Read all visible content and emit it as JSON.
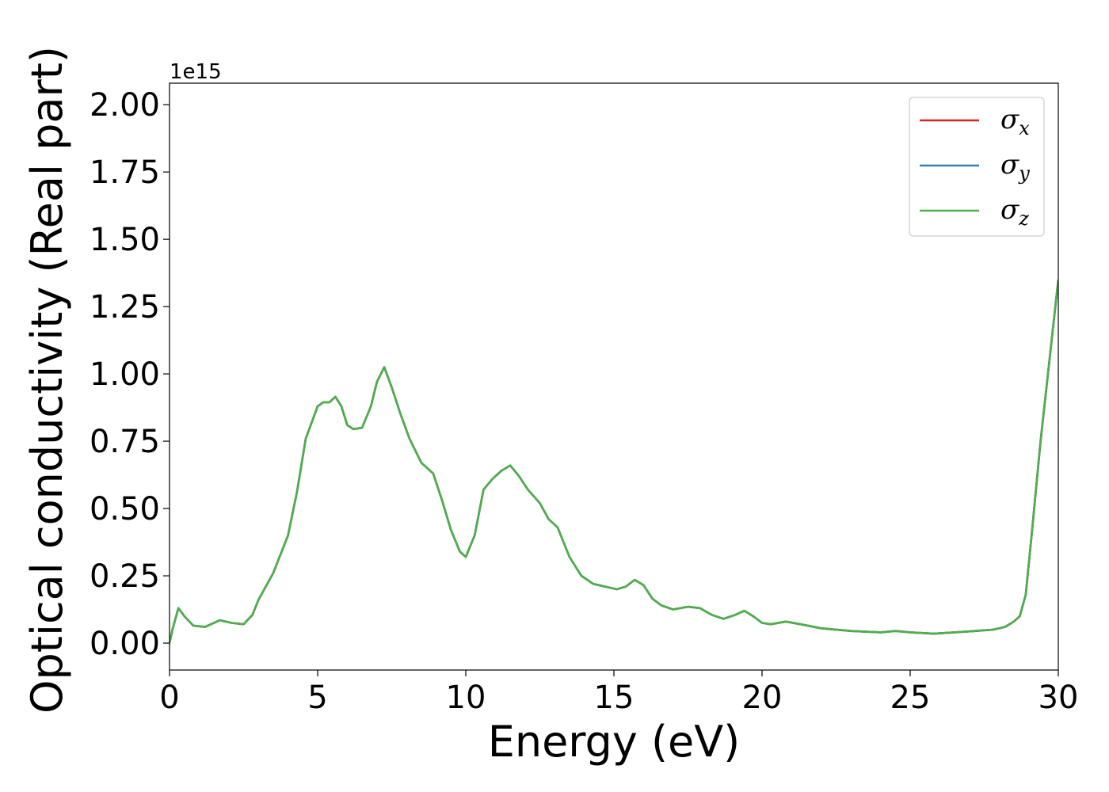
{
  "chart_data": {
    "type": "line",
    "xlabel": "Energy (eV)",
    "ylabel": "Optical conductivity (Real part)",
    "y_offset_text": "1e15",
    "xlim": [
      0,
      30
    ],
    "ylim": [
      -0.1,
      2.08
    ],
    "y_scale_factor": 1000000000000000.0,
    "x_ticks": [
      0,
      5,
      10,
      15,
      20,
      25,
      30
    ],
    "x_tick_labels": [
      "0",
      "5",
      "10",
      "15",
      "20",
      "25",
      "30"
    ],
    "y_ticks": [
      0.0,
      0.25,
      0.5,
      0.75,
      1.0,
      1.25,
      1.5,
      1.75,
      2.0
    ],
    "y_tick_labels": [
      "0.00",
      "0.25",
      "0.50",
      "0.75",
      "1.00",
      "1.25",
      "1.50",
      "1.75",
      "2.00"
    ],
    "grid": false,
    "legend_position": "top-right",
    "x": [
      0,
      0.1,
      0.3,
      0.5,
      0.8,
      1.2,
      1.7,
      2.1,
      2.5,
      2.8,
      3.0,
      3.5,
      4.0,
      4.3,
      4.6,
      5.0,
      5.2,
      5.4,
      5.6,
      5.8,
      6.0,
      6.2,
      6.5,
      6.8,
      7.0,
      7.25,
      7.5,
      7.8,
      8.1,
      8.5,
      8.9,
      9.2,
      9.5,
      9.8,
      10.0,
      10.3,
      10.6,
      10.9,
      11.2,
      11.5,
      11.8,
      12.1,
      12.5,
      12.8,
      13.1,
      13.5,
      13.9,
      14.3,
      14.7,
      15.1,
      15.4,
      15.7,
      16.0,
      16.3,
      16.6,
      17.0,
      17.5,
      17.9,
      18.3,
      18.7,
      19.1,
      19.4,
      19.7,
      20.0,
      20.3,
      20.8,
      21.3,
      22.0,
      23.0,
      24.0,
      24.5,
      25.0,
      25.8,
      26.5,
      27.2,
      27.8,
      28.2,
      28.5,
      28.7,
      28.9,
      29.1,
      29.4,
      29.7,
      30.0
    ],
    "series": [
      {
        "name": "σx",
        "color": "#d62728",
        "values": [
          0.0,
          0.05,
          0.13,
          0.1,
          0.065,
          0.06,
          0.085,
          0.075,
          0.07,
          0.105,
          0.16,
          0.26,
          0.4,
          0.56,
          0.76,
          0.88,
          0.895,
          0.895,
          0.915,
          0.88,
          0.81,
          0.795,
          0.8,
          0.88,
          0.97,
          1.025,
          0.95,
          0.85,
          0.76,
          0.67,
          0.63,
          0.53,
          0.42,
          0.34,
          0.32,
          0.4,
          0.57,
          0.61,
          0.64,
          0.66,
          0.62,
          0.57,
          0.52,
          0.46,
          0.43,
          0.32,
          0.25,
          0.22,
          0.21,
          0.2,
          0.21,
          0.235,
          0.215,
          0.165,
          0.14,
          0.125,
          0.135,
          0.13,
          0.105,
          0.09,
          0.105,
          0.12,
          0.1,
          0.075,
          0.07,
          0.08,
          0.07,
          0.055,
          0.045,
          0.04,
          0.045,
          0.04,
          0.035,
          0.04,
          0.045,
          0.05,
          0.06,
          0.08,
          0.1,
          0.18,
          0.4,
          0.75,
          1.05,
          1.35
        ]
      },
      {
        "name": "σy",
        "color": "#377eb8",
        "values": [
          0.0,
          0.05,
          0.13,
          0.1,
          0.065,
          0.06,
          0.085,
          0.075,
          0.07,
          0.105,
          0.16,
          0.26,
          0.4,
          0.56,
          0.76,
          0.88,
          0.895,
          0.895,
          0.915,
          0.88,
          0.81,
          0.795,
          0.8,
          0.88,
          0.97,
          1.025,
          0.95,
          0.85,
          0.76,
          0.67,
          0.63,
          0.53,
          0.42,
          0.34,
          0.32,
          0.4,
          0.57,
          0.61,
          0.64,
          0.66,
          0.62,
          0.57,
          0.52,
          0.46,
          0.43,
          0.32,
          0.25,
          0.22,
          0.21,
          0.2,
          0.21,
          0.235,
          0.215,
          0.165,
          0.14,
          0.125,
          0.135,
          0.13,
          0.105,
          0.09,
          0.105,
          0.12,
          0.1,
          0.075,
          0.07,
          0.08,
          0.07,
          0.055,
          0.045,
          0.04,
          0.045,
          0.04,
          0.035,
          0.04,
          0.045,
          0.05,
          0.06,
          0.08,
          0.1,
          0.18,
          0.4,
          0.75,
          1.05,
          1.35
        ]
      },
      {
        "name": "σz",
        "color": "#4daf4a",
        "values": [
          0.0,
          0.05,
          0.13,
          0.1,
          0.065,
          0.06,
          0.085,
          0.075,
          0.07,
          0.105,
          0.16,
          0.26,
          0.4,
          0.56,
          0.76,
          0.88,
          0.895,
          0.895,
          0.915,
          0.88,
          0.81,
          0.795,
          0.8,
          0.88,
          0.97,
          1.025,
          0.95,
          0.85,
          0.76,
          0.67,
          0.63,
          0.53,
          0.42,
          0.34,
          0.32,
          0.4,
          0.57,
          0.61,
          0.64,
          0.66,
          0.62,
          0.57,
          0.52,
          0.46,
          0.43,
          0.32,
          0.25,
          0.22,
          0.21,
          0.2,
          0.21,
          0.235,
          0.215,
          0.165,
          0.14,
          0.125,
          0.135,
          0.13,
          0.105,
          0.09,
          0.105,
          0.12,
          0.1,
          0.075,
          0.07,
          0.08,
          0.07,
          0.055,
          0.045,
          0.04,
          0.045,
          0.04,
          0.035,
          0.04,
          0.045,
          0.05,
          0.06,
          0.08,
          0.1,
          0.18,
          0.4,
          0.75,
          1.05,
          1.35
        ]
      }
    ]
  }
}
